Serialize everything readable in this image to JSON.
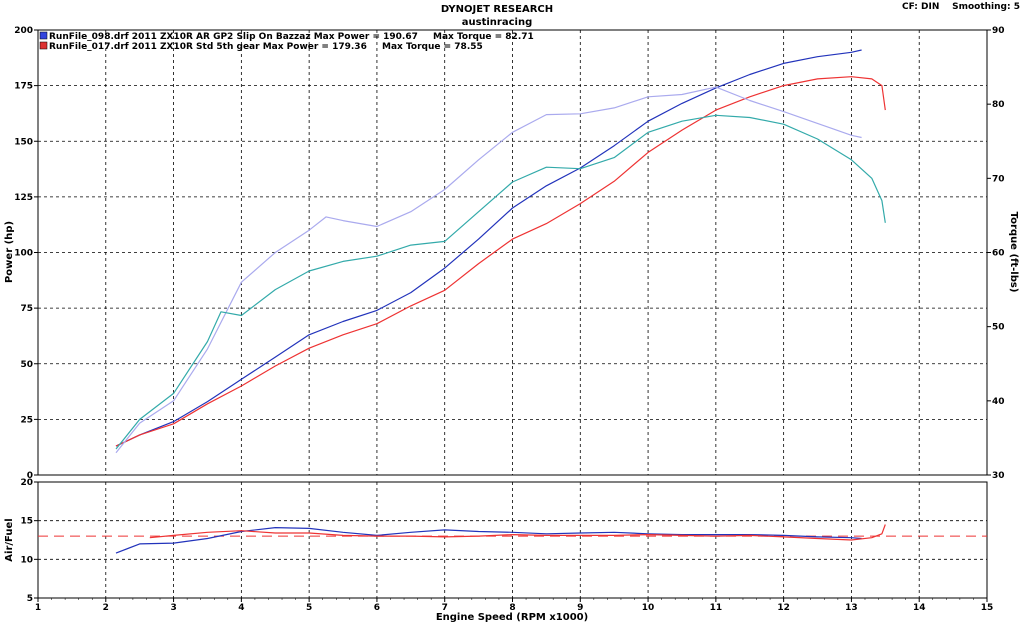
{
  "header": {
    "title": "DYNOJET RESEARCH",
    "subtitle": "austinracing",
    "cf_label": "CF: DIN",
    "smoothing_label": "Smoothing: 5"
  },
  "legend": [
    {
      "text": "RunFile_098.drf 2011 ZX10R AR GP2 Slip On Bazzaz Max Power = 190.67",
      "torque_text": "Max Torque = 82.71",
      "color": "#3344dd"
    },
    {
      "text": "RunFile_017.drf 2011 ZX10R Std 5th gear Max Power = 179.36",
      "torque_text": "Max Torque = 78.55",
      "color": "#dd3333"
    }
  ],
  "chart_data": [
    {
      "type": "line",
      "xlabel": "",
      "ylabel": "Power (hp)",
      "y2label": "Torque (ft-lbs)",
      "xlim": [
        1,
        15
      ],
      "ylim": [
        0,
        200
      ],
      "y2lim": [
        30,
        90
      ],
      "yticks": [
        "0",
        "25",
        "50",
        "75",
        "100",
        "125",
        "150",
        "175",
        "200"
      ],
      "y2ticks": [
        "30",
        "40",
        "50",
        "60",
        "70",
        "80",
        "90"
      ],
      "grid": true,
      "series": [
        {
          "role": "power",
          "file": 0,
          "color": "#2233bb",
          "axis": "left",
          "x": [
            2.15,
            2.5,
            3.0,
            3.5,
            4.0,
            4.5,
            5.0,
            5.5,
            6.0,
            6.5,
            7.0,
            7.5,
            8.0,
            8.5,
            9.0,
            9.5,
            10.0,
            10.5,
            11.0,
            11.5,
            12.0,
            12.5,
            13.0,
            13.15
          ],
          "y": [
            13,
            18,
            24,
            33,
            43,
            53,
            63,
            69,
            74,
            82,
            93,
            106,
            120,
            130,
            138,
            148,
            159,
            167,
            174,
            180,
            185,
            188,
            190,
            191
          ]
        },
        {
          "role": "power",
          "file": 1,
          "color": "#ee3333",
          "axis": "left",
          "x": [
            2.15,
            2.5,
            3.0,
            3.5,
            4.0,
            4.5,
            5.0,
            5.5,
            6.0,
            6.5,
            7.0,
            7.5,
            8.0,
            8.5,
            9.0,
            9.5,
            10.0,
            10.5,
            11.0,
            11.5,
            12.0,
            12.5,
            13.0,
            13.3,
            13.45,
            13.5
          ],
          "y": [
            13,
            18,
            23,
            32,
            40,
            49,
            57,
            63,
            68,
            76,
            83,
            95,
            106,
            113,
            122,
            132,
            145,
            155,
            164,
            170,
            175,
            178,
            179,
            178,
            175,
            164
          ]
        },
        {
          "role": "torque",
          "file": 0,
          "color": "#aaaaee",
          "axis": "right",
          "x": [
            2.15,
            2.5,
            3.0,
            3.5,
            4.0,
            4.5,
            5.0,
            5.25,
            5.5,
            6.0,
            6.5,
            7.0,
            7.5,
            8.0,
            8.5,
            9.0,
            9.5,
            10.0,
            10.5,
            11.0,
            11.5,
            12.0,
            12.5,
            13.0,
            13.15
          ],
          "y": [
            33,
            37,
            40,
            47,
            56,
            60,
            63,
            64.8,
            64.3,
            63.5,
            65.5,
            68.5,
            72.5,
            76.2,
            78.6,
            78.7,
            79.5,
            81,
            81.3,
            82.3,
            80.5,
            79,
            77.4,
            75.8,
            75.5
          ]
        },
        {
          "role": "torque",
          "file": 1,
          "color": "#33aaaa",
          "axis": "right",
          "x": [
            2.15,
            2.5,
            3.0,
            3.5,
            3.7,
            4.0,
            4.5,
            5.0,
            5.5,
            6.0,
            6.5,
            7.0,
            7.5,
            8.0,
            8.5,
            9.0,
            9.5,
            10.0,
            10.5,
            11.0,
            11.5,
            12.0,
            12.5,
            13.0,
            13.3,
            13.45,
            13.5
          ],
          "y": [
            33.5,
            37.5,
            41,
            48,
            52,
            51.5,
            55,
            57.5,
            58.8,
            59.5,
            61,
            61.5,
            65.5,
            69.5,
            71.5,
            71.3,
            72.8,
            76.2,
            77.7,
            78.5,
            78.2,
            77.3,
            75.3,
            72.5,
            70,
            67,
            64
          ]
        }
      ]
    },
    {
      "type": "line",
      "xlabel": "Engine Speed (RPM x1000)",
      "ylabel": "Air/Fuel",
      "xlim": [
        1,
        15
      ],
      "ylim": [
        5,
        20
      ],
      "xticks": [
        "1",
        "2",
        "3",
        "4",
        "5",
        "6",
        "7",
        "8",
        "9",
        "10",
        "11",
        "12",
        "13",
        "14",
        "15"
      ],
      "yticks": [
        "5",
        "10",
        "15",
        "20"
      ],
      "grid": true,
      "reference_line": {
        "y": 13,
        "color": "#ee3333"
      },
      "series": [
        {
          "role": "afr",
          "file": 0,
          "color": "#2233bb",
          "x": [
            2.15,
            2.5,
            3.0,
            3.5,
            4.0,
            4.5,
            5.0,
            5.5,
            6.0,
            6.5,
            7.0,
            7.5,
            8.0,
            8.5,
            9.0,
            9.5,
            10.0,
            10.5,
            11.0,
            11.5,
            12.0,
            12.5,
            13.0,
            13.15
          ],
          "y": [
            10.8,
            12,
            12.1,
            12.7,
            13.6,
            14.1,
            14.0,
            13.5,
            13.1,
            13.5,
            13.8,
            13.6,
            13.5,
            13.3,
            13.4,
            13.5,
            13.3,
            13.2,
            13.2,
            13.2,
            13.1,
            12.9,
            12.8,
            12.7
          ]
        },
        {
          "role": "afr",
          "file": 1,
          "color": "#ee3333",
          "x": [
            2.65,
            3.0,
            3.5,
            4.0,
            4.5,
            5.0,
            5.5,
            6.0,
            6.5,
            7.0,
            7.5,
            8.0,
            8.5,
            9.0,
            9.5,
            10.0,
            10.5,
            11.0,
            11.5,
            12.0,
            12.5,
            13.0,
            13.3,
            13.45,
            13.5
          ],
          "y": [
            12.8,
            13.1,
            13.5,
            13.7,
            13.4,
            13.4,
            13.1,
            13.0,
            13.0,
            12.9,
            13.0,
            13.2,
            13.1,
            13.1,
            13.1,
            13.2,
            13.1,
            13.0,
            13.1,
            12.9,
            12.7,
            12.5,
            12.8,
            13.3,
            14.5
          ]
        }
      ]
    }
  ]
}
